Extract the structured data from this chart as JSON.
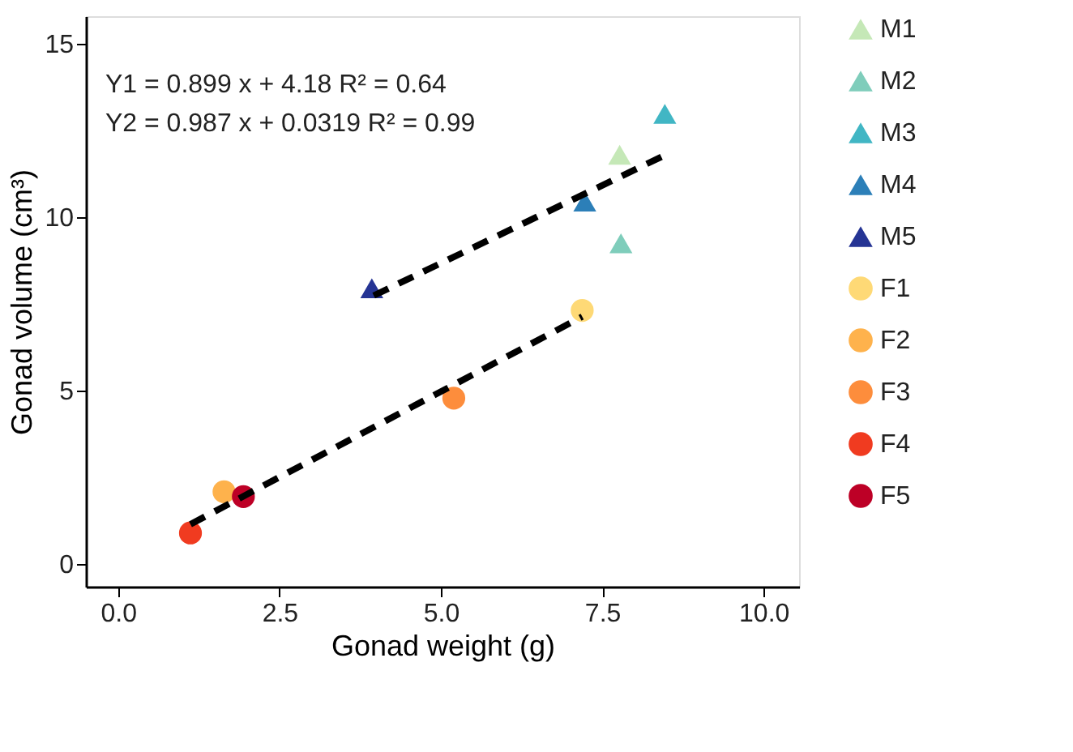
{
  "chart_data": {
    "type": "scatter",
    "xlabel": "Gonad weight (g)",
    "ylabel": "Gonad volume (cm³)",
    "xlim": [
      -0.5,
      10.55
    ],
    "ylim": [
      -0.66,
      15.8
    ],
    "xticks": [
      {
        "value": 0,
        "label": "0.0"
      },
      2.5,
      {
        "value": 5,
        "label": "5.0"
      },
      7.5,
      {
        "value": 10,
        "label": "10.0"
      }
    ],
    "yticks": [
      0,
      5,
      10,
      15
    ],
    "grid": false,
    "legend": "right",
    "annotations": [
      "Y1 = 0.899 x + 4.18  R² = 0.64",
      "Y2 = 0.987 x + 0.0319 R² = 0.99"
    ],
    "series": [
      {
        "name": "M1",
        "marker": "triangle",
        "color": "#c5e8b7",
        "x": [
          7.77
        ],
        "values": [
          11.8
        ]
      },
      {
        "name": "M2",
        "marker": "triangle",
        "color": "#7fcdbb",
        "x": [
          7.79
        ],
        "values": [
          9.25
        ]
      },
      {
        "name": "M3",
        "marker": "triangle",
        "color": "#41b6c4",
        "x": [
          8.47
        ],
        "values": [
          12.98
        ]
      },
      {
        "name": "M4",
        "marker": "triangle",
        "color": "#2c7fb8",
        "x": [
          7.23
        ],
        "values": [
          10.45
        ]
      },
      {
        "name": "M5",
        "marker": "triangle",
        "color": "#253494",
        "x": [
          3.93
        ],
        "values": [
          7.95
        ]
      },
      {
        "name": "F1",
        "marker": "circle",
        "color": "#fed976",
        "x": [
          7.19
        ],
        "values": [
          7.31
        ]
      },
      {
        "name": "F2",
        "marker": "circle",
        "color": "#feb24c",
        "x": [
          1.64
        ],
        "values": [
          2.08
        ]
      },
      {
        "name": "F3",
        "marker": "circle",
        "color": "#fd8d3c",
        "x": [
          5.2
        ],
        "values": [
          4.78
        ]
      },
      {
        "name": "F4",
        "marker": "circle",
        "color": "#f03b20",
        "x": [
          1.12
        ],
        "values": [
          0.89
        ]
      },
      {
        "name": "F5",
        "marker": "circle",
        "color": "#bd0026",
        "x": [
          1.94
        ],
        "values": [
          1.94
        ]
      },
      {
        "type": "line",
        "line_style": "dashed",
        "color": "#000000",
        "x": [
          3.96,
          8.47
        ],
        "values": [
          7.74,
          11.79
        ]
      },
      {
        "type": "line",
        "line_style": "dashed",
        "color": "#000000",
        "x": [
          1.12,
          7.19
        ],
        "values": [
          1.14,
          7.13
        ]
      }
    ]
  }
}
